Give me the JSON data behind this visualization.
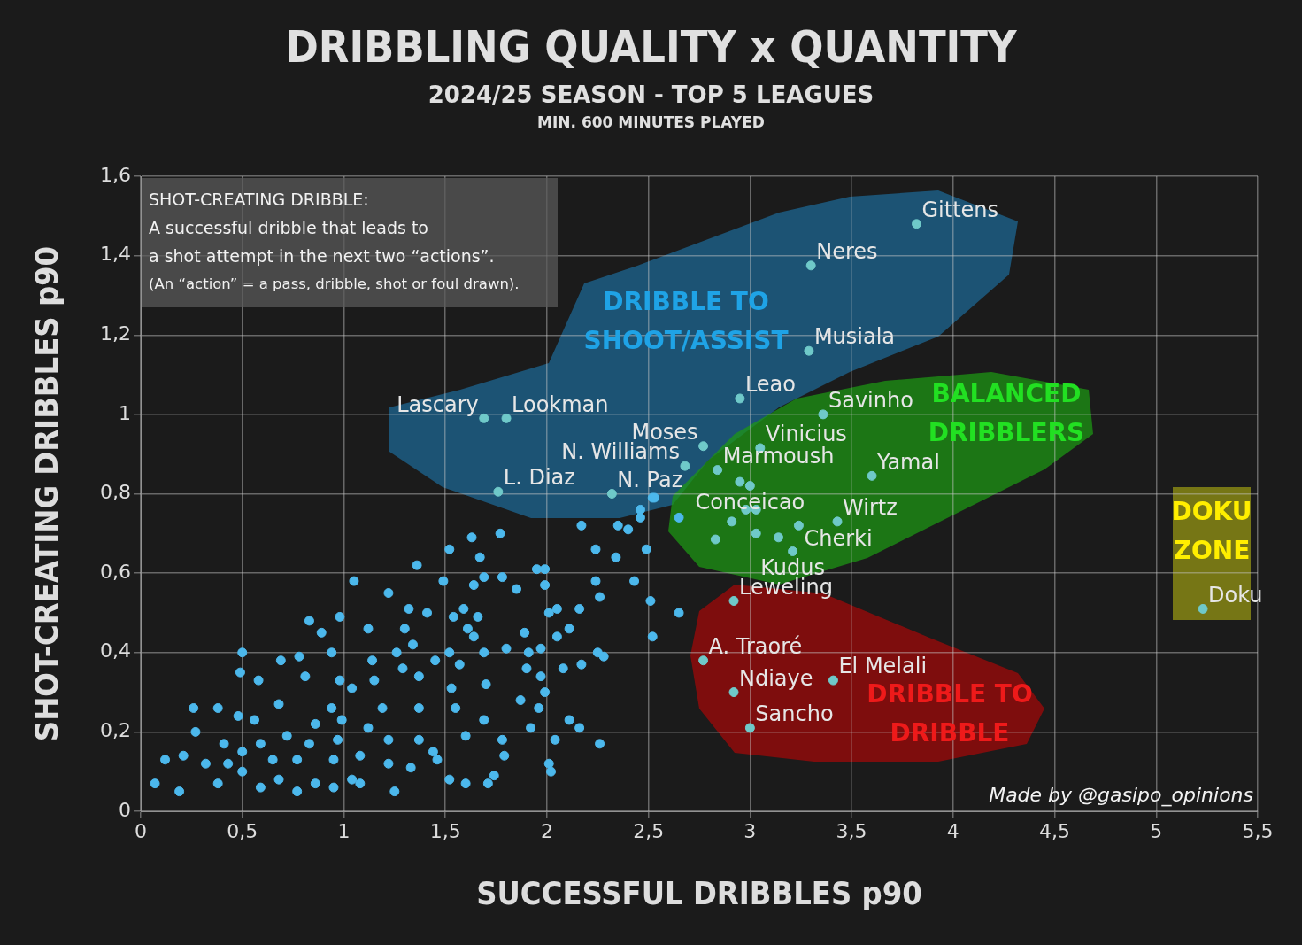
{
  "chart_data": {
    "type": "scatter",
    "title": "DRIBBLING QUALITY x QUANTITY",
    "subtitle": "2024/25 SEASON - TOP 5 LEAGUES\nMIN. 600 MINUTES PLAYED",
    "xlabel": "SUCCESSFUL DRIBBLES p90",
    "ylabel": "SHOT-CREATING DRIBBLES p90",
    "xlim": [
      0,
      5.5
    ],
    "ylim": [
      0,
      1.6
    ],
    "xticks": [
      0,
      {
        "value": 0.5,
        "label": "0,5"
      },
      1,
      {
        "value": 1.5,
        "label": "1,5"
      },
      2,
      {
        "value": 2.5,
        "label": "2,5"
      },
      3,
      {
        "value": 3.5,
        "label": "3,5"
      },
      4,
      {
        "value": 4.5,
        "label": "4,5"
      },
      5,
      {
        "value": 5.5,
        "label": "5,5"
      }
    ],
    "yticks": [
      0,
      {
        "value": 0.2,
        "label": "0,2"
      },
      {
        "value": 0.4,
        "label": "0,4"
      },
      {
        "value": 0.6,
        "label": "0,6"
      },
      {
        "value": 0.8,
        "label": "0,8"
      },
      1,
      {
        "value": 1.2,
        "label": "1,2"
      },
      {
        "value": 1.4,
        "label": "1,4"
      },
      {
        "value": 1.6,
        "label": "1,6"
      }
    ],
    "grid": true,
    "legend": false,
    "marker": "circle",
    "series": [
      {
        "color": "#4cb8ec",
        "x": [
          2.52,
          2.17,
          2.35,
          2.4,
          2.46,
          2.65,
          1.63,
          1.77,
          1.52,
          1.67,
          1.36,
          2.24,
          2.34,
          2.49,
          1.95,
          1.99,
          1.99,
          1.69,
          1.78,
          1.49,
          1.05,
          1.22,
          1.64,
          1.85,
          2.24,
          2.43,
          2.26,
          2.51,
          2.65,
          0.98,
          1.32,
          1.41,
          1.54,
          1.59,
          1.66,
          2.01,
          2.05,
          2.16,
          0.83,
          0.89,
          0.94,
          1.12,
          1.3,
          1.34,
          1.61,
          1.64,
          1.89,
          2.05,
          2.11,
          2.52,
          0.5,
          0.49,
          0.78,
          0.69,
          1.14,
          1.26,
          1.52,
          1.45,
          1.69,
          1.8,
          1.97,
          1.91,
          2.25,
          2.28,
          1.9,
          2.08,
          2.17,
          1.97,
          1.99,
          1.7,
          1.37,
          1.57,
          0.58,
          0.81,
          0.98,
          1.15,
          1.29,
          0.26,
          0.38,
          0.48,
          1.04,
          1.53,
          1.87,
          1.96,
          2.11,
          2.16,
          2.04,
          2.26,
          1.79,
          2.01,
          2.02,
          1.52,
          1.6,
          1.71,
          1.74,
          1.25,
          0.07,
          0.12,
          0.21,
          0.27,
          0.19,
          0.41,
          0.59,
          0.72,
          0.86,
          0.99,
          1.12,
          1.22,
          1.37,
          1.44,
          1.6,
          1.78,
          1.92,
          1.69,
          1.55,
          1.37,
          1.19,
          0.94,
          0.68,
          0.56,
          0.32,
          0.5,
          0.68,
          0.86,
          1.04,
          1.22,
          1.33,
          1.46,
          0.38,
          0.59,
          0.77,
          0.95,
          1.08,
          0.43,
          0.77,
          0.95,
          1.08,
          0.65,
          0.5,
          0.97,
          0.83,
          2.53,
          2.46
        ],
        "values": [
          0.79,
          0.72,
          0.72,
          0.71,
          0.74,
          0.74,
          0.69,
          0.7,
          0.66,
          0.64,
          0.62,
          0.66,
          0.64,
          0.66,
          0.61,
          0.61,
          0.57,
          0.59,
          0.59,
          0.58,
          0.58,
          0.55,
          0.57,
          0.56,
          0.58,
          0.58,
          0.54,
          0.53,
          0.5,
          0.49,
          0.51,
          0.5,
          0.49,
          0.51,
          0.49,
          0.5,
          0.51,
          0.51,
          0.48,
          0.45,
          0.4,
          0.46,
          0.46,
          0.42,
          0.46,
          0.44,
          0.45,
          0.44,
          0.46,
          0.44,
          0.4,
          0.35,
          0.39,
          0.38,
          0.38,
          0.4,
          0.4,
          0.38,
          0.4,
          0.41,
          0.41,
          0.4,
          0.4,
          0.39,
          0.36,
          0.36,
          0.37,
          0.34,
          0.3,
          0.32,
          0.34,
          0.37,
          0.33,
          0.34,
          0.33,
          0.33,
          0.36,
          0.26,
          0.26,
          0.24,
          0.31,
          0.31,
          0.28,
          0.26,
          0.23,
          0.21,
          0.18,
          0.17,
          0.14,
          0.12,
          0.1,
          0.08,
          0.07,
          0.07,
          0.09,
          0.05,
          0.07,
          0.13,
          0.14,
          0.2,
          0.05,
          0.17,
          0.17,
          0.19,
          0.22,
          0.23,
          0.21,
          0.18,
          0.18,
          0.15,
          0.19,
          0.18,
          0.21,
          0.23,
          0.26,
          0.26,
          0.26,
          0.26,
          0.27,
          0.23,
          0.12,
          0.1,
          0.08,
          0.07,
          0.08,
          0.12,
          0.11,
          0.13,
          0.07,
          0.06,
          0.05,
          0.06,
          0.07,
          0.12,
          0.13,
          0.13,
          0.14,
          0.13,
          0.15,
          0.18,
          0.17,
          0.79,
          0.76
        ]
      },
      {
        "color": "#6fc9c9",
        "x": [
          3.82,
          3.3,
          3.29,
          2.95,
          3.36,
          1.69,
          1.8,
          2.77,
          3.05,
          2.68,
          2.84,
          3.6,
          1.76,
          2.32,
          3.0,
          3.43,
          3.24,
          3.21,
          2.92,
          2.77,
          3.41,
          2.92,
          3.0,
          5.23,
          2.83,
          2.91,
          2.98,
          3.03,
          3.03,
          3.14,
          2.95
        ],
        "values": [
          1.48,
          1.375,
          1.16,
          1.04,
          1.0,
          0.99,
          0.99,
          0.92,
          0.915,
          0.87,
          0.86,
          0.845,
          0.805,
          0.8,
          0.82,
          0.73,
          0.72,
          0.655,
          0.53,
          0.38,
          0.33,
          0.3,
          0.21,
          0.51,
          0.685,
          0.73,
          0.76,
          0.76,
          0.7,
          0.69,
          0.83
        ]
      }
    ],
    "annotations": [
      "DRIBBLE TO\nSHOOT/ASSIST",
      "BALANCED\nDRIBBLERS",
      "DRIBBLE TO\nDRIBBLE",
      "DOKU\nZONE",
      {
        "text": "Gittens",
        "x": 3.82,
        "y": 1.48
      },
      {
        "text": "Neres",
        "x": 3.3,
        "y": 1.375
      },
      {
        "text": "Musiala",
        "x": 3.29,
        "y": 1.16
      },
      {
        "text": "Leao",
        "x": 2.95,
        "y": 1.04
      },
      {
        "text": "Savinho",
        "x": 3.36,
        "y": 1.0
      },
      {
        "text": "Lascary",
        "x": 1.69,
        "y": 0.99
      },
      {
        "text": "Lookman",
        "x": 1.8,
        "y": 0.99
      },
      {
        "text": "Moses",
        "x": 2.77,
        "y": 0.92
      },
      {
        "text": "Vinicius",
        "x": 3.05,
        "y": 0.915
      },
      {
        "text": "N. Williams",
        "x": 2.68,
        "y": 0.87
      },
      {
        "text": "Marmoush",
        "x": 2.84,
        "y": 0.86
      },
      {
        "text": "Yamal",
        "x": 3.6,
        "y": 0.845
      },
      {
        "text": "L. Diaz",
        "x": 1.76,
        "y": 0.805
      },
      {
        "text": "N. Paz",
        "x": 2.32,
        "y": 0.8
      },
      {
        "text": "Conceicao",
        "x": 3.0,
        "y": 0.82
      },
      {
        "text": "Wirtz",
        "x": 3.43,
        "y": 0.73
      },
      {
        "text": "Cherki",
        "x": 3.24,
        "y": 0.72
      },
      {
        "text": "Kudus",
        "x": 3.21,
        "y": 0.655
      },
      {
        "text": "Leweling",
        "x": 2.92,
        "y": 0.53
      },
      {
        "text": "A. Traoré",
        "x": 2.77,
        "y": 0.38
      },
      {
        "text": "El Melali",
        "x": 3.41,
        "y": 0.33
      },
      {
        "text": "Ndiaye",
        "x": 2.92,
        "y": 0.3
      },
      {
        "text": "Sancho",
        "x": 3.0,
        "y": 0.21
      },
      {
        "text": "Doku",
        "x": 5.23,
        "y": 0.51
      },
      "SHOT-CREATING DRIBBLE:\nA successful dribble that leads to\na shot attempt in the next two “actions”.\n(An “action”  = a pass, dribble, shot or foul drawn).",
      "Made by @gasipo_opinions"
    ]
  }
}
